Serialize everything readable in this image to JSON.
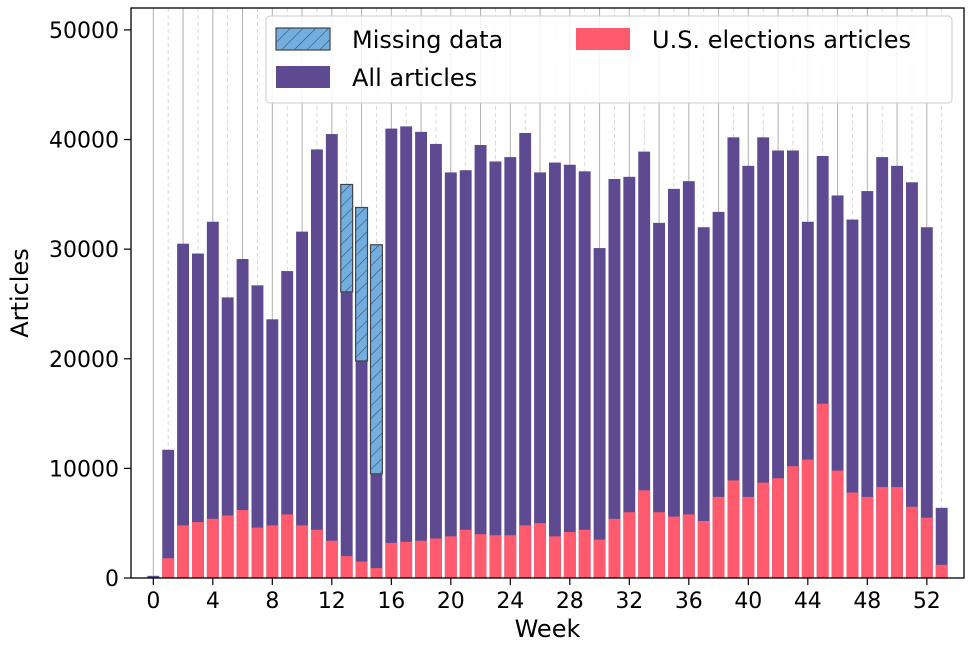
{
  "chart_data": {
    "type": "bar",
    "title": "",
    "xlabel": "Week",
    "ylabel": "Articles",
    "xlim": [
      -1.5,
      54.5
    ],
    "ylim": [
      0,
      52000
    ],
    "xticks": [
      0,
      4,
      8,
      12,
      16,
      20,
      24,
      28,
      32,
      36,
      40,
      44,
      48,
      52
    ],
    "yticks": [
      0,
      10000,
      20000,
      30000,
      40000,
      50000
    ],
    "x": [
      0,
      1,
      2,
      3,
      4,
      5,
      6,
      7,
      8,
      9,
      10,
      11,
      12,
      13,
      14,
      15,
      16,
      17,
      18,
      19,
      20,
      21,
      22,
      23,
      24,
      25,
      26,
      27,
      28,
      29,
      30,
      31,
      32,
      33,
      34,
      35,
      36,
      37,
      38,
      39,
      40,
      41,
      42,
      43,
      44,
      45,
      46,
      47,
      48,
      49,
      50,
      51,
      52,
      53
    ],
    "series": [
      {
        "name": "All articles",
        "color": "#5d4a91",
        "values": [
          200,
          11700,
          30500,
          29600,
          32500,
          25600,
          29100,
          26700,
          23600,
          28000,
          31600,
          39100,
          40500,
          26100,
          19800,
          9500,
          41000,
          41200,
          40700,
          39600,
          37000,
          37200,
          39500,
          38000,
          38400,
          40600,
          37000,
          37900,
          37700,
          37100,
          30100,
          36400,
          36600,
          38900,
          32400,
          35500,
          36200,
          32000,
          33400,
          40200,
          37600,
          40200,
          39000,
          39000,
          32500,
          38500,
          34900,
          32700,
          35300,
          38400,
          37600,
          36100,
          32000,
          6400
        ]
      },
      {
        "name": "U.S. elections articles",
        "color": "#ff5a6e",
        "values": [
          0,
          1800,
          4800,
          5100,
          5400,
          5700,
          6200,
          4600,
          4800,
          5800,
          4800,
          4400,
          3400,
          2000,
          1500,
          900,
          3200,
          3300,
          3400,
          3600,
          3800,
          4400,
          4000,
          3900,
          3900,
          4800,
          5000,
          3800,
          4200,
          4400,
          3500,
          5400,
          6000,
          8000,
          6000,
          5600,
          5800,
          5200,
          7400,
          8900,
          7400,
          8700,
          9100,
          10200,
          10800,
          15900,
          9800,
          7800,
          7400,
          8300,
          8300,
          6500,
          5500,
          1200
        ]
      },
      {
        "name": "Missing data",
        "color": "#72aee0",
        "values": [
          0,
          0,
          0,
          0,
          0,
          0,
          0,
          0,
          0,
          0,
          0,
          0,
          0,
          9800,
          14000,
          20900,
          0,
          0,
          0,
          0,
          0,
          0,
          0,
          0,
          0,
          0,
          0,
          0,
          0,
          0,
          0,
          0,
          0,
          0,
          0,
          0,
          0,
          0,
          0,
          0,
          0,
          0,
          0,
          0,
          0,
          0,
          0,
          0,
          0,
          0,
          0,
          0,
          0,
          0
        ],
        "stacked_on": "All articles"
      }
    ],
    "legend": {
      "position": "top-right",
      "entries": [
        "Missing data",
        "U.S. elections articles",
        "All articles"
      ]
    },
    "grid": "vertical"
  }
}
